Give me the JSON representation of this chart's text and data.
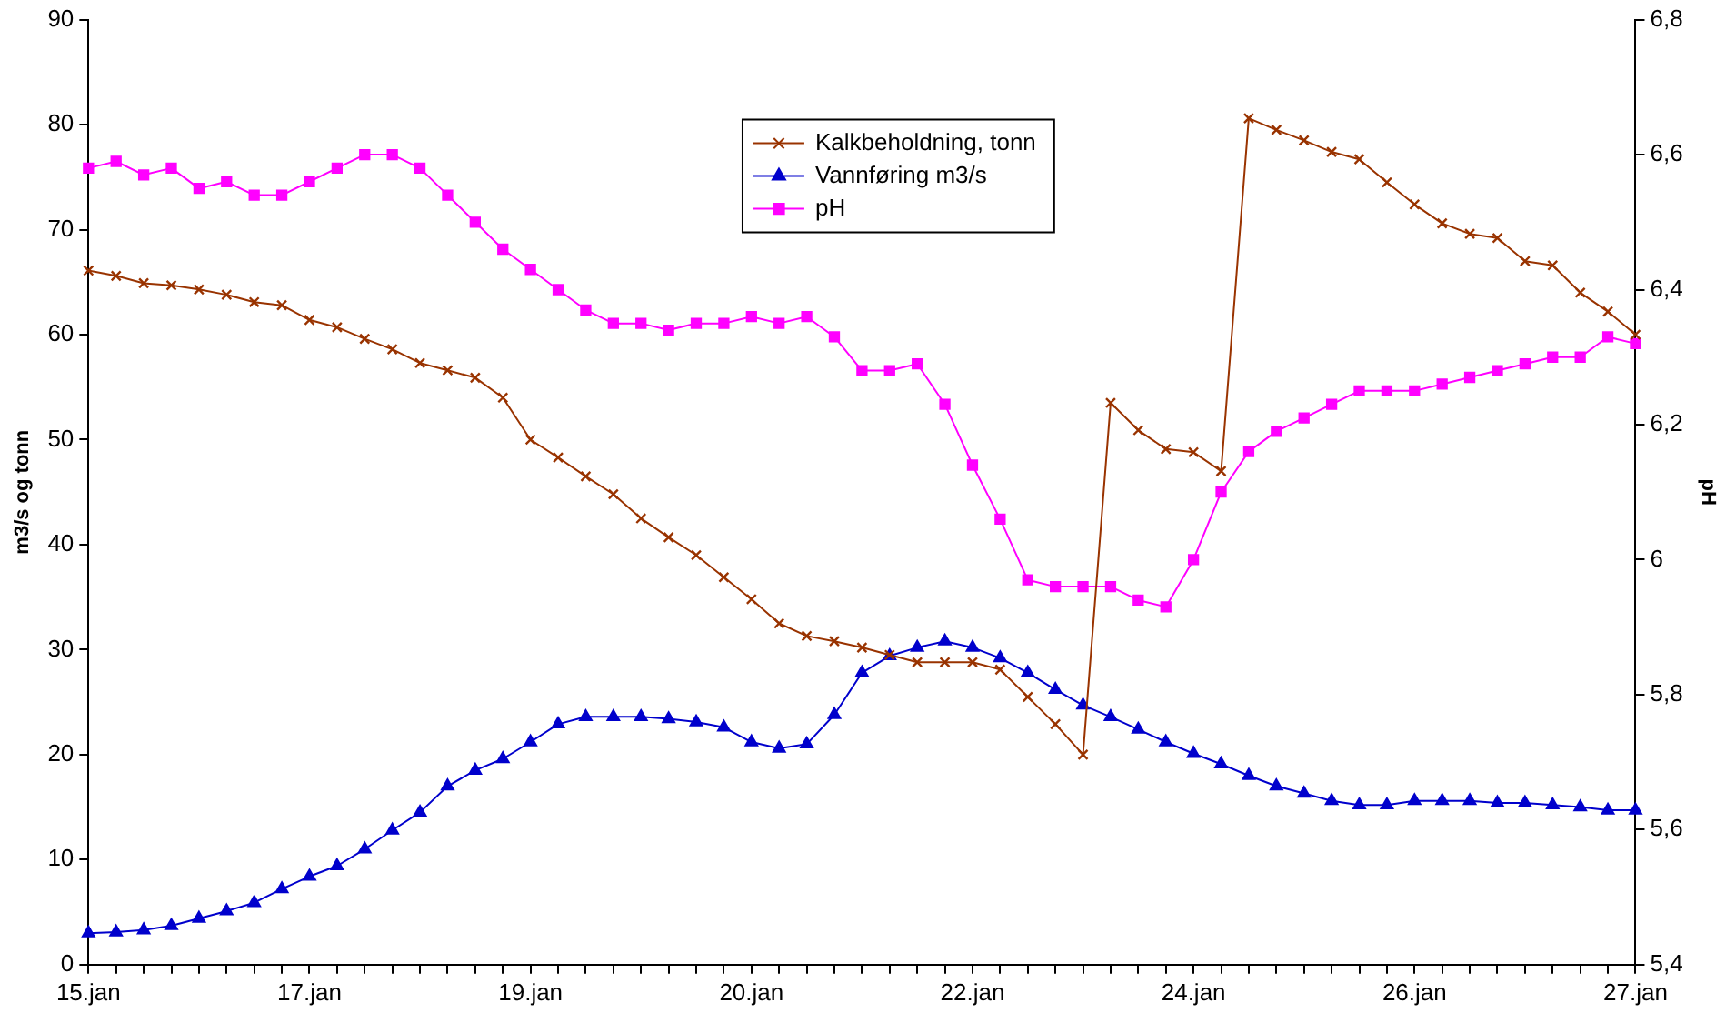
{
  "chart_data": {
    "type": "line",
    "ylabel": "m3/s og tonn",
    "y2label": "pH",
    "categories": [
      "15.jan",
      null,
      null,
      null,
      null,
      null,
      null,
      null,
      "17.jan",
      null,
      null,
      null,
      null,
      null,
      null,
      null,
      "19.jan",
      null,
      null,
      null,
      null,
      null,
      null,
      null,
      "20.jan",
      null,
      null,
      null,
      null,
      null,
      null,
      null,
      "22.jan",
      null,
      null,
      null,
      null,
      null,
      null,
      null,
      "24.jan",
      null,
      null,
      null,
      null,
      null,
      null,
      null,
      "26.jan",
      null,
      null,
      null,
      null,
      null,
      null,
      null,
      "27.jan"
    ],
    "series": [
      {
        "name": "Kalkbeholdning, tonn",
        "color": "#993300",
        "marker": "cross",
        "values": [
          66.1,
          65.6,
          64.9,
          64.7,
          64.3,
          63.8,
          63.1,
          62.8,
          61.4,
          60.7,
          59.6,
          58.6,
          57.3,
          56.6,
          55.9,
          54.0,
          50.0,
          48.3,
          46.5,
          44.8,
          42.5,
          40.7,
          39.0,
          36.9,
          34.8,
          32.5,
          31.3,
          30.8,
          30.2,
          29.5,
          28.8,
          28.8,
          28.8,
          28.1,
          25.5,
          22.9,
          20.0,
          53.5,
          50.9,
          49.1,
          48.8,
          47.0,
          80.6,
          79.5,
          78.5,
          77.4,
          76.7,
          74.5,
          72.4,
          70.6,
          69.6,
          69.2,
          67.0,
          66.6,
          64.0,
          62.2,
          60.0
        ]
      },
      {
        "name": "Vannføring m3/s",
        "color": "#0000cc",
        "marker": "triangle",
        "values": [
          3.0,
          3.1,
          3.3,
          3.7,
          4.4,
          5.1,
          5.9,
          7.2,
          8.4,
          9.4,
          11.0,
          12.8,
          14.5,
          17.0,
          18.5,
          19.6,
          21.2,
          22.9,
          23.6,
          23.6,
          23.6,
          23.4,
          23.1,
          22.6,
          21.2,
          20.6,
          21.0,
          23.8,
          27.8,
          29.4,
          30.2,
          30.8,
          30.2,
          29.2,
          27.8,
          26.2,
          24.7,
          23.6,
          22.4,
          21.2,
          20.1,
          19.1,
          18.0,
          17.0,
          16.3,
          15.6,
          15.2,
          15.2,
          15.6,
          15.6,
          15.6,
          15.4,
          15.4,
          15.2,
          15.0,
          14.7,
          14.7
        ]
      },
      {
        "name": "pH",
        "color": "#ff00ff",
        "marker": "square",
        "axis": "y2",
        "values": [
          6.58,
          6.59,
          6.57,
          6.58,
          6.55,
          6.56,
          6.54,
          6.54,
          6.56,
          6.58,
          6.6,
          6.6,
          6.58,
          6.54,
          6.5,
          6.46,
          6.43,
          6.4,
          6.37,
          6.35,
          6.35,
          6.34,
          6.35,
          6.35,
          6.36,
          6.35,
          6.36,
          6.33,
          6.28,
          6.28,
          6.29,
          6.23,
          6.14,
          6.06,
          5.97,
          5.96,
          5.96,
          5.96,
          5.94,
          5.93,
          6.0,
          6.1,
          6.16,
          6.19,
          6.21,
          6.23,
          6.25,
          6.25,
          6.25,
          6.26,
          6.27,
          6.28,
          6.29,
          6.3,
          6.3,
          6.33,
          6.32
        ]
      }
    ],
    "ylim": [
      0,
      90
    ],
    "yticks": [
      0,
      10,
      20,
      30,
      40,
      50,
      60,
      70,
      80,
      90
    ],
    "y2lim": [
      5.4,
      6.8
    ],
    "y2ticks": [
      {
        "value": 5.4,
        "label": "5,4"
      },
      {
        "value": 5.6,
        "label": "5,6"
      },
      {
        "value": 5.8,
        "label": "5,8"
      },
      {
        "value": 6.0,
        "label": "6"
      },
      {
        "value": 6.2,
        "label": "6,2"
      },
      {
        "value": 6.4,
        "label": "6,4"
      },
      {
        "value": 6.6,
        "label": "6,6"
      },
      {
        "value": 6.8,
        "label": "6,8"
      }
    ],
    "grid": false,
    "legend": "top"
  }
}
